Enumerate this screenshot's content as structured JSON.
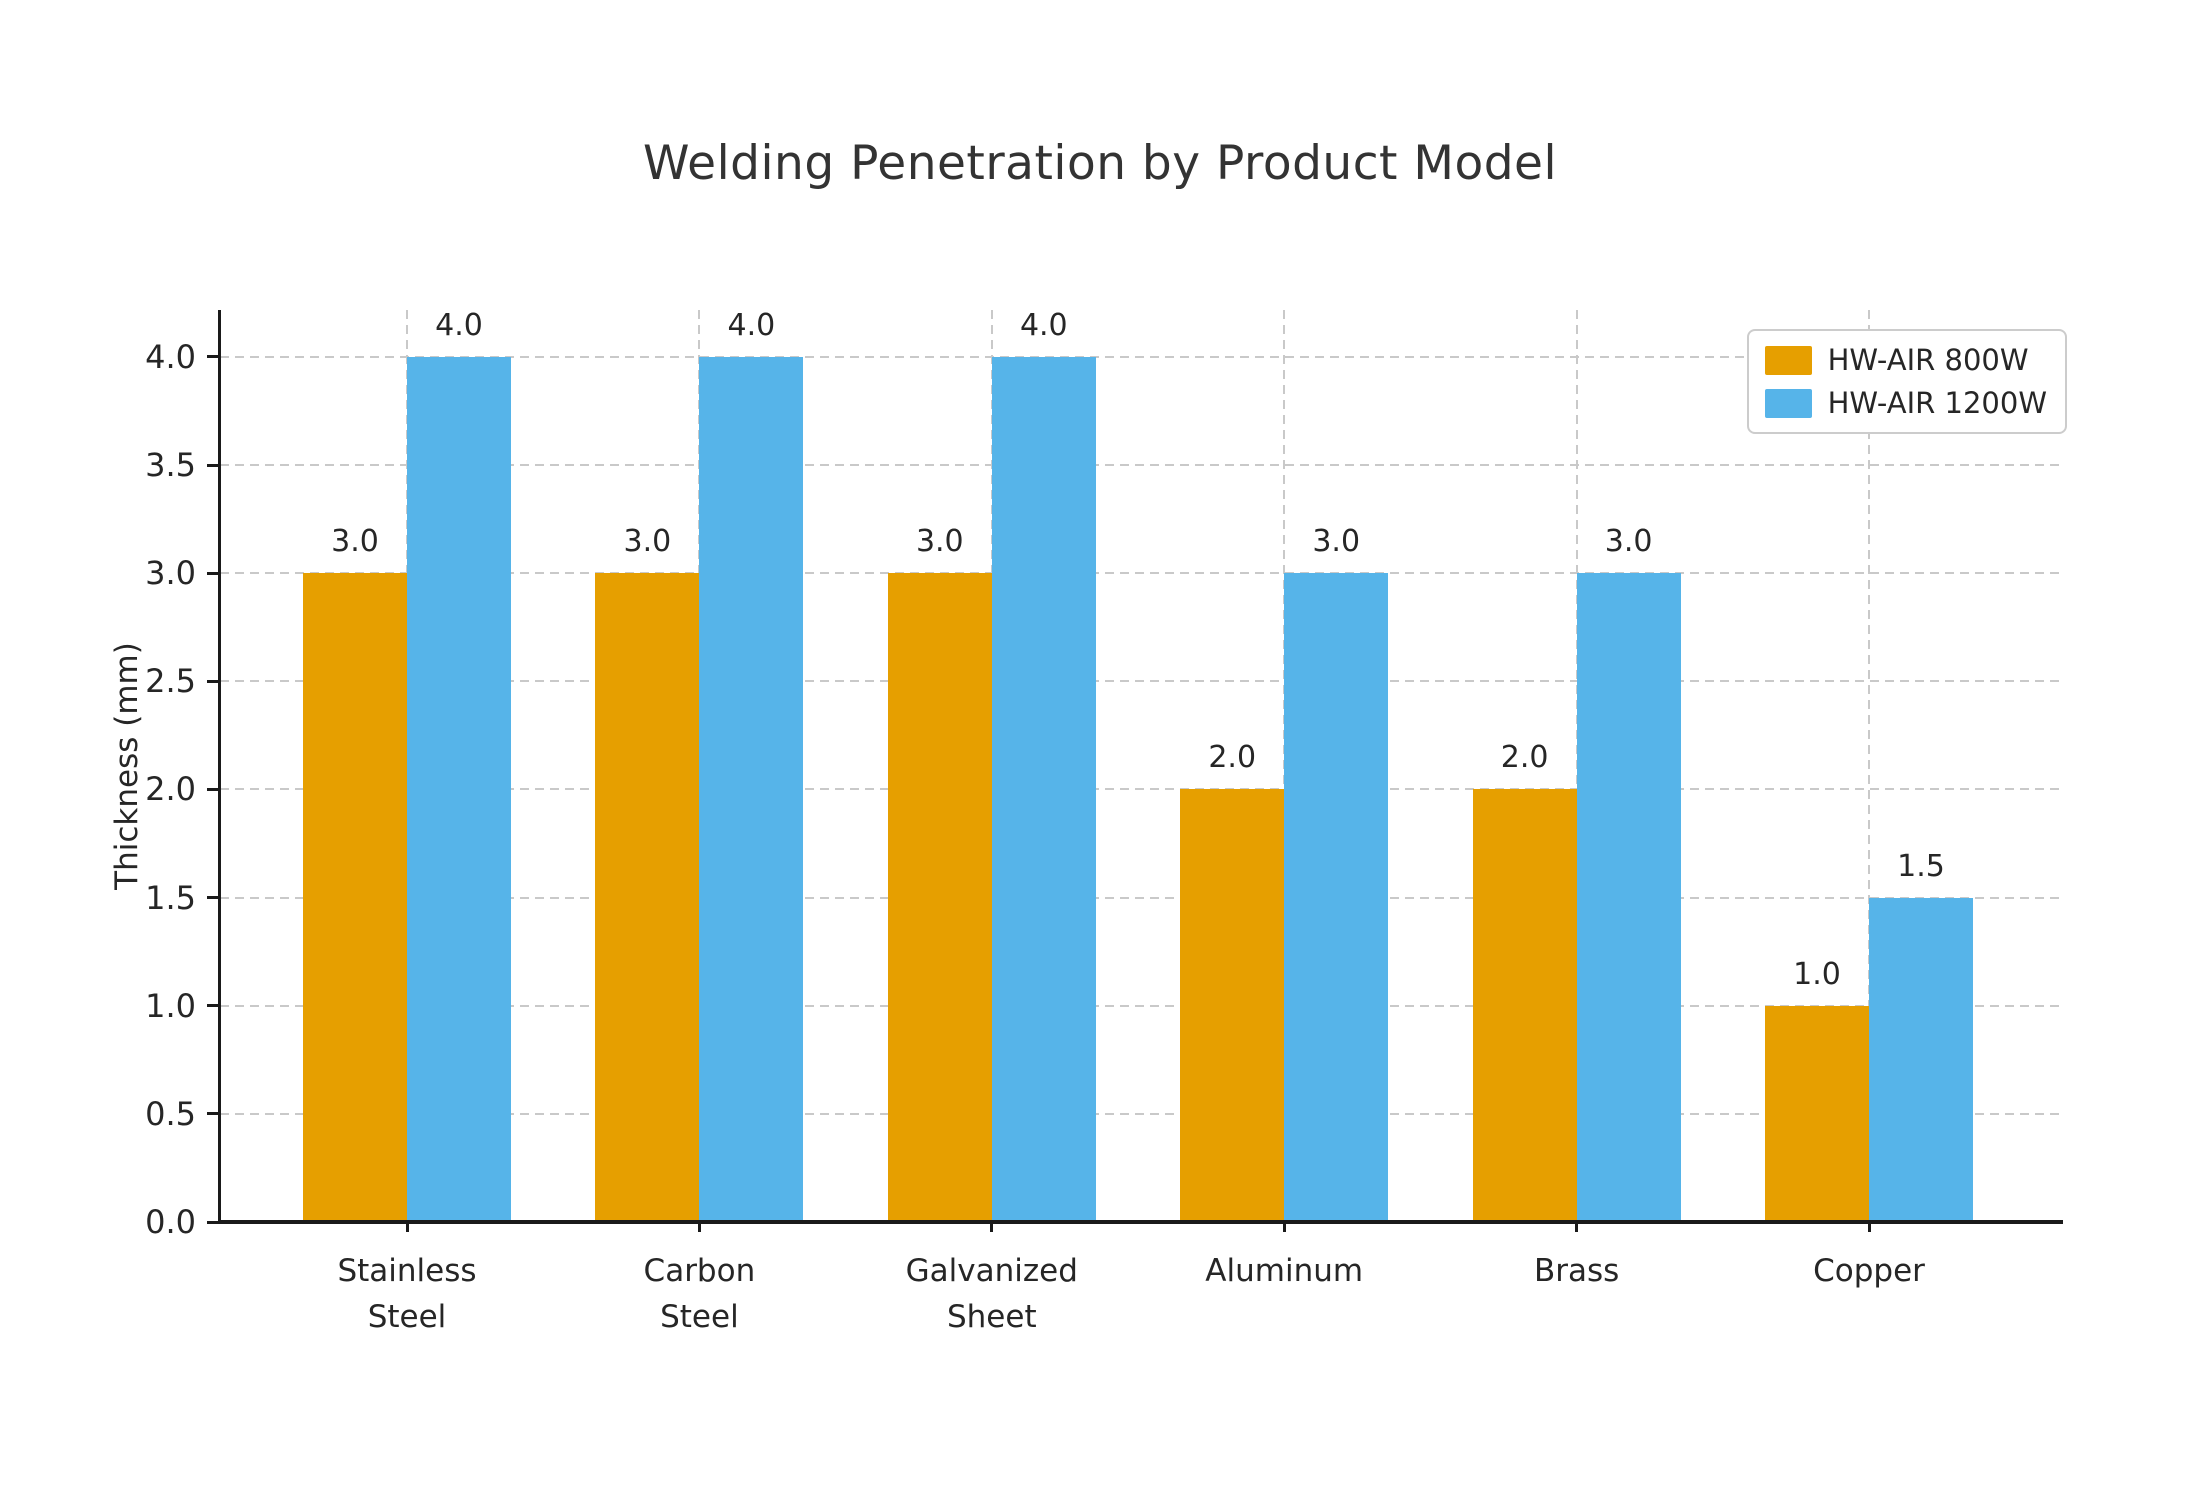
{
  "chart_data": {
    "type": "bar",
    "title": "Welding Penetration by Product Model",
    "ylabel": "Thickness (mm)",
    "xlabel": "",
    "categories": [
      "Stainless Steel",
      "Carbon Steel",
      "Galvanized Sheet",
      "Aluminum",
      "Brass",
      "Copper"
    ],
    "category_label_lines": [
      [
        "Stainless",
        "Steel"
      ],
      [
        "Carbon",
        "Steel"
      ],
      [
        "Galvanized",
        "Sheet"
      ],
      [
        "Aluminum"
      ],
      [
        "Brass"
      ],
      [
        "Copper"
      ]
    ],
    "series": [
      {
        "name": "HW-AIR 800W",
        "color": "#E69F00",
        "values": [
          3.0,
          3.0,
          3.0,
          2.0,
          2.0,
          1.0
        ]
      },
      {
        "name": "HW-AIR 1200W",
        "color": "#56B4E9",
        "values": [
          4.0,
          4.0,
          4.0,
          3.0,
          3.0,
          1.5
        ]
      }
    ],
    "bar_labels": [
      [
        "3.0",
        "3.0",
        "3.0",
        "2.0",
        "2.0",
        "1.0"
      ],
      [
        "4.0",
        "4.0",
        "4.0",
        "3.0",
        "3.0",
        "1.5"
      ]
    ],
    "ylim": [
      0,
      4.217
    ],
    "yticks": [
      0.0,
      0.5,
      1.0,
      1.5,
      2.0,
      2.5,
      3.0,
      3.5,
      4.0
    ],
    "grid": "dashed horizontal at each ytick and dashed vertical at each category center",
    "legend_position": "upper right",
    "colors": {
      "grid": "#c9c9c9",
      "spine": "#1a1a1a",
      "text": "#262626",
      "title": "#333333",
      "legend_border": "#cccccc",
      "background": "#ffffff"
    }
  }
}
